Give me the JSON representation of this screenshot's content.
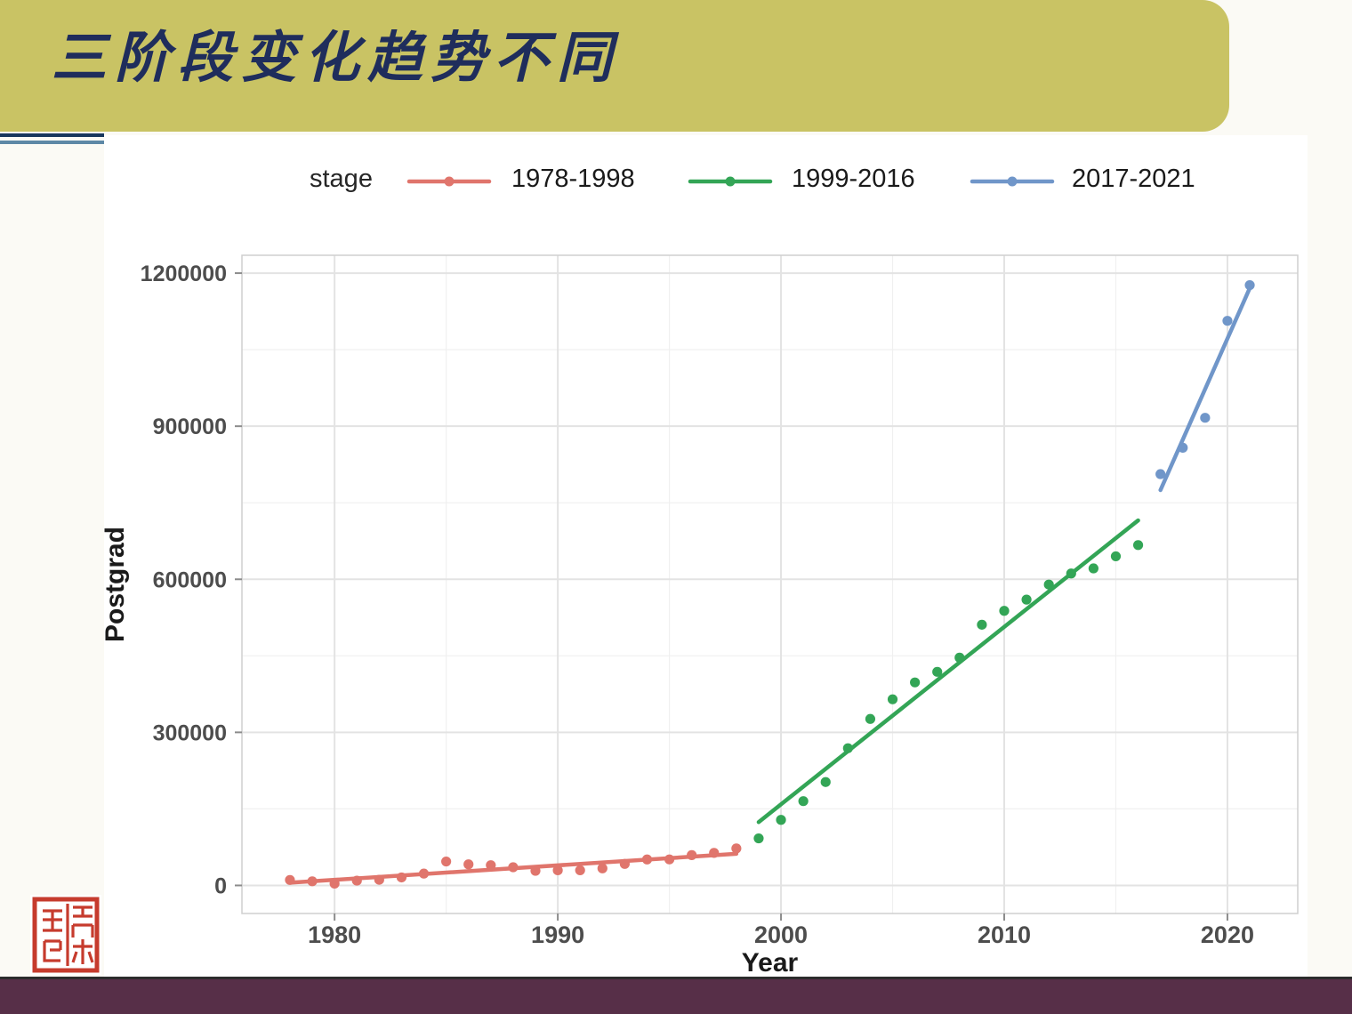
{
  "slide": {
    "title": "三阶段变化趋势不同",
    "banner_color": "#c9c364",
    "title_color": "#1f2d5c",
    "underline_colors": [
      "#17365d",
      "#5d88a6"
    ],
    "footer_color": "#572f48",
    "background_color": "#fbfaf5"
  },
  "chart_data": {
    "type": "scatter",
    "title": "",
    "xlabel": "Year",
    "ylabel": "Postgrad",
    "legend_title": "stage",
    "legend_position": "top",
    "grid": true,
    "x_ticks": [
      1980,
      1990,
      2000,
      2010,
      2020
    ],
    "x_minor_ticks": [
      1985,
      1995,
      2005,
      2015
    ],
    "y_ticks": [
      0,
      300000,
      600000,
      900000,
      1200000
    ],
    "y_minor_ticks": [
      150000,
      450000,
      750000,
      1050000
    ],
    "x_domain": [
      1975.85,
      2023.15
    ],
    "y_domain": [
      -55000,
      1235000
    ],
    "axis_text_color": "#4d4d4d",
    "axis_title_color": "#1a1a1a",
    "series": [
      {
        "name": "1978-1998",
        "color": "#e0756c",
        "years": [
          1978,
          1979,
          1980,
          1981,
          1982,
          1983,
          1984,
          1985,
          1986,
          1987,
          1988,
          1989,
          1990,
          1991,
          1992,
          1993,
          1994,
          1995,
          1996,
          1997,
          1998
        ],
        "values": [
          10708,
          8110,
          3616,
          9363,
          11080,
          15642,
          23181,
          46871,
          41310,
          39717,
          35645,
          28569,
          29649,
          29679,
          33439,
          42145,
          50864,
          51053,
          59398,
          63749,
          72508
        ],
        "trend": {
          "year1": 1978,
          "value1": 5300,
          "year2": 1998,
          "value2": 62000
        }
      },
      {
        "name": "1999-2016",
        "color": "#33a556",
        "years": [
          1999,
          2000,
          2001,
          2002,
          2003,
          2004,
          2005,
          2006,
          2007,
          2008,
          2009,
          2010,
          2011,
          2012,
          2013,
          2014,
          2015,
          2016
        ],
        "values": [
          92225,
          128484,
          165197,
          202611,
          268925,
          326286,
          364831,
          397925,
          418612,
          446422,
          510953,
          538177,
          560168,
          589673,
          611381,
          621323,
          645055,
          667064
        ],
        "trend": {
          "year1": 1999,
          "value1": 124100,
          "year2": 2016,
          "value2": 715400
        }
      },
      {
        "name": "2017-2021",
        "color": "#7096c9",
        "years": [
          2017,
          2018,
          2019,
          2020,
          2021
        ],
        "values": [
          806103,
          857800,
          916500,
          1106551,
          1176500
        ],
        "trend": {
          "year1": 2017,
          "value1": 774800,
          "year2": 2021,
          "value2": 1170600
        }
      }
    ]
  }
}
